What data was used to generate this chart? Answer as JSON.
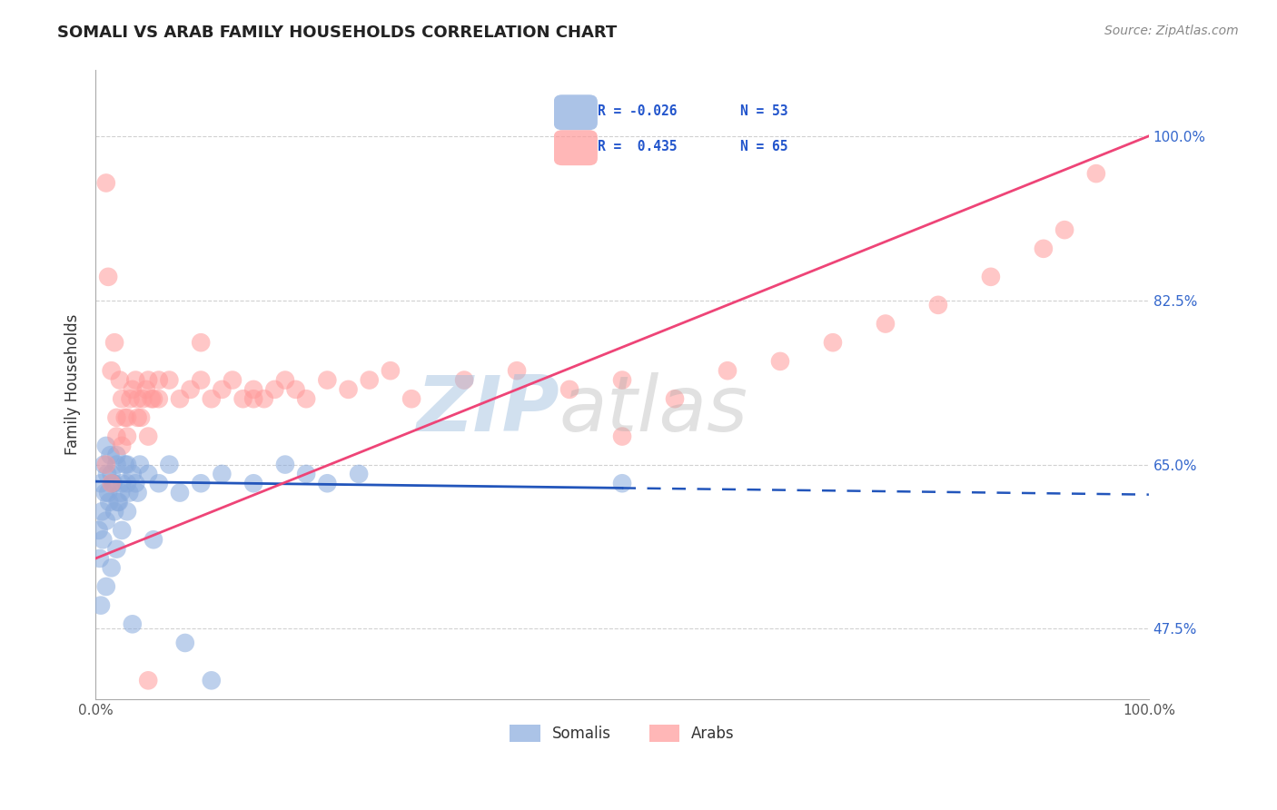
{
  "title": "SOMALI VS ARAB FAMILY HOUSEHOLDS CORRELATION CHART",
  "source": "Source: ZipAtlas.com",
  "ylabel": "Family Households",
  "yticks": [
    47.5,
    65.0,
    82.5,
    100.0
  ],
  "ytick_labels": [
    "47.5%",
    "65.0%",
    "82.5%",
    "100.0%"
  ],
  "xmin": 0.0,
  "xmax": 100.0,
  "ymin": 40.0,
  "ymax": 107.0,
  "blue_color": "#88AADD",
  "pink_color": "#FF9999",
  "blue_line_color": "#2255BB",
  "pink_line_color": "#EE4477",
  "blue_line_y0": 63.2,
  "blue_line_y100": 61.8,
  "pink_line_y0": 55.0,
  "pink_line_y100": 100.0,
  "blue_solid_end": 50.0,
  "pink_solid_end": 100.0,
  "somali_x": [
    0.5,
    0.8,
    1.0,
    1.2,
    1.5,
    1.8,
    2.0,
    2.2,
    2.5,
    3.0,
    0.3,
    0.6,
    0.9,
    1.1,
    1.4,
    1.7,
    2.1,
    2.8,
    3.2,
    3.5,
    0.4,
    0.7,
    1.0,
    1.3,
    1.6,
    2.0,
    2.4,
    3.0,
    3.8,
    4.2,
    0.5,
    1.0,
    1.5,
    2.0,
    2.5,
    3.0,
    4.0,
    5.0,
    6.0,
    7.0,
    8.0,
    10.0,
    12.0,
    15.0,
    18.0,
    20.0,
    22.0,
    25.0,
    3.5,
    5.5,
    8.5,
    11.0,
    50.0
  ],
  "somali_y": [
    63.0,
    65.0,
    67.0,
    62.0,
    64.0,
    60.0,
    66.0,
    61.0,
    63.0,
    65.0,
    58.0,
    60.0,
    62.0,
    64.0,
    66.0,
    63.0,
    61.0,
    65.0,
    62.0,
    64.0,
    55.0,
    57.0,
    59.0,
    61.0,
    63.0,
    65.0,
    62.0,
    60.0,
    63.0,
    65.0,
    50.0,
    52.0,
    54.0,
    56.0,
    58.0,
    63.0,
    62.0,
    64.0,
    63.0,
    65.0,
    62.0,
    63.0,
    64.0,
    63.0,
    65.0,
    64.0,
    63.0,
    64.0,
    48.0,
    57.0,
    46.0,
    42.0,
    63.0
  ],
  "arab_x": [
    1.0,
    1.5,
    2.0,
    2.5,
    3.0,
    3.5,
    4.0,
    4.5,
    5.0,
    5.5,
    1.2,
    1.8,
    2.3,
    2.8,
    3.3,
    3.8,
    4.3,
    4.8,
    5.3,
    6.0,
    1.0,
    2.0,
    3.0,
    4.0,
    5.0,
    6.0,
    7.0,
    8.0,
    9.0,
    10.0,
    11.0,
    12.0,
    13.0,
    14.0,
    15.0,
    16.0,
    17.0,
    18.0,
    19.0,
    20.0,
    22.0,
    24.0,
    26.0,
    28.0,
    30.0,
    35.0,
    40.0,
    45.0,
    50.0,
    55.0,
    60.0,
    65.0,
    70.0,
    75.0,
    80.0,
    85.0,
    90.0,
    92.0,
    95.0,
    10.0,
    2.5,
    15.0,
    50.0,
    1.5,
    5.0
  ],
  "arab_y": [
    95.0,
    75.0,
    70.0,
    72.0,
    68.0,
    73.0,
    70.0,
    72.0,
    68.0,
    72.0,
    85.0,
    78.0,
    74.0,
    70.0,
    72.0,
    74.0,
    70.0,
    73.0,
    72.0,
    74.0,
    65.0,
    68.0,
    70.0,
    72.0,
    74.0,
    72.0,
    74.0,
    72.0,
    73.0,
    74.0,
    72.0,
    73.0,
    74.0,
    72.0,
    73.0,
    72.0,
    73.0,
    74.0,
    73.0,
    72.0,
    74.0,
    73.0,
    74.0,
    75.0,
    72.0,
    74.0,
    75.0,
    73.0,
    74.0,
    72.0,
    75.0,
    76.0,
    78.0,
    80.0,
    82.0,
    85.0,
    88.0,
    90.0,
    96.0,
    78.0,
    67.0,
    72.0,
    68.0,
    63.0,
    42.0
  ]
}
